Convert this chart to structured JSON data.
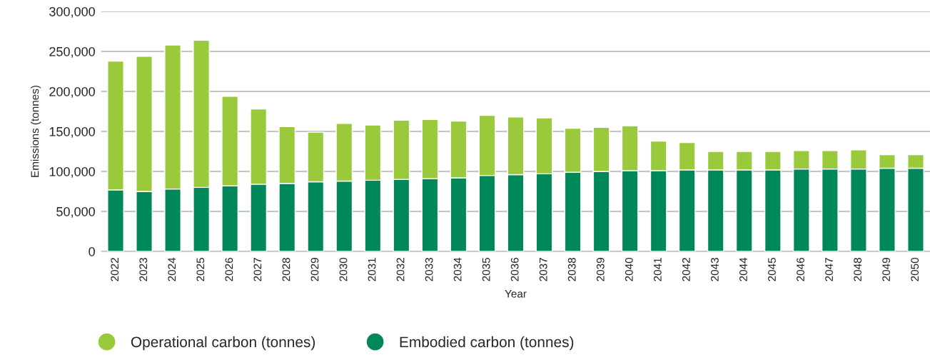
{
  "chart_data": {
    "type": "bar",
    "stacked": true,
    "xlabel": "Year",
    "ylabel": "Emissions (tonnes)",
    "categories": [
      "2022",
      "2023",
      "2024",
      "2025",
      "2026",
      "2027",
      "2028",
      "2029",
      "2030",
      "2031",
      "2032",
      "2033",
      "2034",
      "2035",
      "2036",
      "2037",
      "2038",
      "2039",
      "2040",
      "2041",
      "2042",
      "2043",
      "2044",
      "2045",
      "2046",
      "2047",
      "2048",
      "2049",
      "2050"
    ],
    "series": [
      {
        "name": "Embodied carbon (tonnes)",
        "color": "#008858",
        "values": [
          77000,
          75000,
          78000,
          80000,
          82000,
          84000,
          85000,
          87000,
          88000,
          89000,
          90000,
          91000,
          92000,
          95000,
          96000,
          97000,
          99000,
          100000,
          101000,
          101000,
          102000,
          102000,
          102000,
          102000,
          103000,
          103000,
          103000,
          104000,
          104000
        ]
      },
      {
        "name": "Operational carbon (tonnes)",
        "color": "#9aca3c",
        "values": [
          161000,
          169000,
          180000,
          184000,
          112000,
          94000,
          71000,
          62000,
          72000,
          69000,
          74000,
          74000,
          71000,
          75000,
          72000,
          70000,
          55000,
          55000,
          56000,
          37000,
          34000,
          23000,
          23000,
          23000,
          23000,
          23000,
          24000,
          17000,
          17000
        ]
      }
    ],
    "ylim": [
      0,
      300000
    ],
    "yticks": [
      {
        "value": 0,
        "label": "0"
      },
      {
        "value": 50000,
        "label": "50,000"
      },
      {
        "value": 100000,
        "label": "100,000"
      },
      {
        "value": 150000,
        "label": "150,000"
      },
      {
        "value": 200000,
        "label": "200,000"
      },
      {
        "value": 250000,
        "label": "250,000"
      },
      {
        "value": 300000,
        "label": "300,000"
      }
    ],
    "grid": "y",
    "legend": "bottom",
    "marker": "circle"
  }
}
